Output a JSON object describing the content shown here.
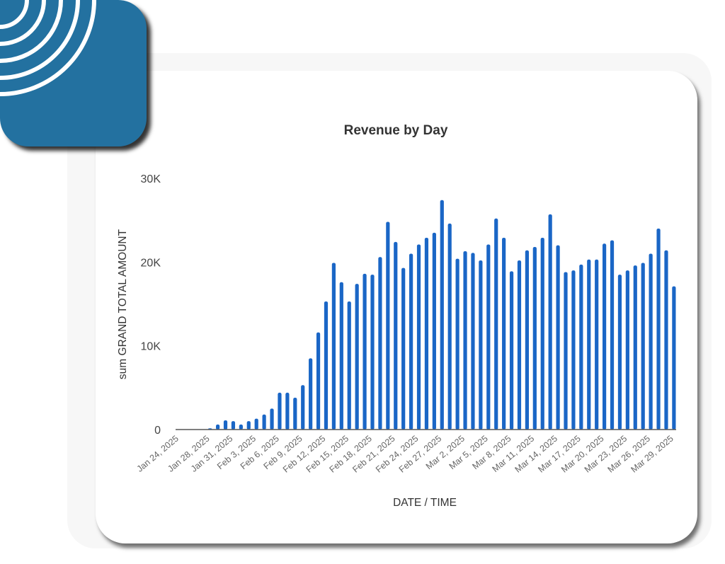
{
  "logo": {
    "name": "signal-arcs-logo"
  },
  "colors": {
    "bar": "#1a66c6",
    "tile": "#2371a0",
    "axis": "#555555"
  },
  "chart_data": {
    "type": "bar",
    "title": "Revenue by Day",
    "xlabel": "DATE / TIME",
    "ylabel": "sum GRAND TOTAL AMOUNT",
    "ylim": [
      0,
      30000
    ],
    "yticks": [
      {
        "value": 0,
        "label": "0"
      },
      {
        "value": 10000,
        "label": "10K"
      },
      {
        "value": 20000,
        "label": "20K"
      },
      {
        "value": 30000,
        "label": "30K"
      }
    ],
    "grid": false,
    "x_tick_labels": [
      {
        "index": 0,
        "label": "Jan 24, 2025"
      },
      {
        "index": 4,
        "label": "Jan 28, 2025"
      },
      {
        "index": 7,
        "label": "Jan 31, 2025"
      },
      {
        "index": 10,
        "label": "Feb 3, 2025"
      },
      {
        "index": 13,
        "label": "Feb 6, 2025"
      },
      {
        "index": 16,
        "label": "Feb 9, 2025"
      },
      {
        "index": 19,
        "label": "Feb 12, 2025"
      },
      {
        "index": 22,
        "label": "Feb 15, 2025"
      },
      {
        "index": 25,
        "label": "Feb 18, 2025"
      },
      {
        "index": 28,
        "label": "Feb 21, 2025"
      },
      {
        "index": 31,
        "label": "Feb 24, 2025"
      },
      {
        "index": 34,
        "label": "Feb 27, 2025"
      },
      {
        "index": 37,
        "label": "Mar 2, 2025"
      },
      {
        "index": 40,
        "label": "Mar 5, 2025"
      },
      {
        "index": 43,
        "label": "Mar 8, 2025"
      },
      {
        "index": 46,
        "label": "Mar 11, 2025"
      },
      {
        "index": 49,
        "label": "Mar 14, 2025"
      },
      {
        "index": 52,
        "label": "Mar 17, 2025"
      },
      {
        "index": 55,
        "label": "Mar 20, 2025"
      },
      {
        "index": 58,
        "label": "Mar 23, 2025"
      },
      {
        "index": 61,
        "label": "Mar 26, 2025"
      },
      {
        "index": 64,
        "label": "Mar 29, 2025"
      }
    ],
    "start_date": "Jan 24, 2025",
    "end_date": "Mar 29, 2025",
    "values": [
      0,
      0,
      0,
      0,
      150,
      600,
      1100,
      1000,
      600,
      1000,
      1300,
      1800,
      2500,
      4400,
      4400,
      3800,
      5300,
      8500,
      11600,
      15300,
      19900,
      17600,
      15300,
      17400,
      18600,
      18500,
      20600,
      24800,
      22400,
      19300,
      21000,
      22100,
      22900,
      23500,
      27400,
      24600,
      20400,
      21300,
      21100,
      20200,
      22100,
      25200,
      22900,
      18900,
      20200,
      21400,
      21800,
      22900,
      25700,
      22000,
      18800,
      19000,
      19700,
      20300,
      20300,
      22200,
      22600,
      18500,
      19000,
      19600,
      19900,
      21000,
      24000,
      21400,
      17100
    ]
  }
}
